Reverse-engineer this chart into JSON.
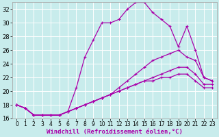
{
  "xlabel": "Windchill (Refroidissement éolien,°C)",
  "background_color": "#c8ecec",
  "line_color": "#aa00aa",
  "grid_color": "#ffffff",
  "xlim": [
    -0.5,
    23.5
  ],
  "ylim": [
    16,
    33
  ],
  "xticks": [
    0,
    1,
    2,
    3,
    4,
    5,
    6,
    7,
    8,
    9,
    10,
    11,
    12,
    13,
    14,
    15,
    16,
    17,
    18,
    19,
    20,
    21,
    22,
    23
  ],
  "yticks": [
    16,
    18,
    20,
    22,
    24,
    26,
    28,
    30,
    32
  ],
  "curve1_x": [
    0,
    1,
    2,
    3,
    4,
    5,
    6,
    7,
    8,
    9,
    10,
    11,
    12,
    13,
    14,
    15,
    16,
    17,
    18,
    19,
    20,
    21,
    22,
    23
  ],
  "curve1_y": [
    18.0,
    17.5,
    16.5,
    16.5,
    16.5,
    16.5,
    17.0,
    20.5,
    25.0,
    27.5,
    30.0,
    30.0,
    30.5,
    32.0,
    33.0,
    33.0,
    31.5,
    30.5,
    29.5,
    26.5,
    29.5,
    26.0,
    22.0,
    21.5
  ],
  "curve2_x": [
    0,
    1,
    2,
    3,
    4,
    5,
    6,
    7,
    8,
    9,
    10,
    11,
    12,
    13,
    14,
    15,
    16,
    17,
    18,
    19,
    20,
    21,
    22,
    23
  ],
  "curve2_y": [
    18.0,
    17.5,
    16.5,
    16.5,
    16.5,
    16.5,
    17.0,
    17.5,
    18.0,
    18.5,
    19.0,
    19.5,
    20.5,
    21.5,
    22.5,
    23.5,
    24.5,
    25.0,
    25.5,
    26.0,
    25.0,
    24.5,
    22.0,
    21.5
  ],
  "curve3_x": [
    0,
    1,
    2,
    3,
    4,
    5,
    6,
    7,
    8,
    9,
    10,
    11,
    12,
    13,
    14,
    15,
    16,
    17,
    18,
    19,
    20,
    21,
    22,
    23
  ],
  "curve3_y": [
    18.0,
    17.5,
    16.5,
    16.5,
    16.5,
    16.5,
    17.0,
    17.5,
    18.0,
    18.5,
    19.0,
    19.5,
    20.0,
    20.5,
    21.0,
    21.5,
    22.0,
    22.5,
    23.0,
    23.5,
    23.5,
    22.5,
    21.0,
    21.0
  ],
  "curve4_x": [
    0,
    1,
    2,
    3,
    4,
    5,
    6,
    7,
    8,
    9,
    10,
    11,
    12,
    13,
    14,
    15,
    16,
    17,
    18,
    19,
    20,
    21,
    22,
    23
  ],
  "curve4_y": [
    18.0,
    17.5,
    16.5,
    16.5,
    16.5,
    16.5,
    17.0,
    17.5,
    18.0,
    18.5,
    19.0,
    19.5,
    20.0,
    20.5,
    21.0,
    21.5,
    21.5,
    22.0,
    22.0,
    22.5,
    22.5,
    21.5,
    20.5,
    20.5
  ],
  "marker": "+",
  "markersize": 3,
  "linewidth": 0.9,
  "tick_fontsize": 5.5,
  "label_fontsize": 6.5
}
